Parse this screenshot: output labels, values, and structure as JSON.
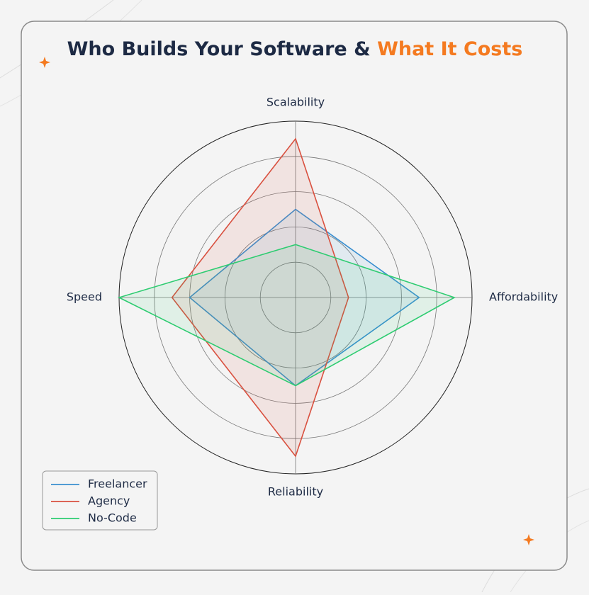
{
  "chart_data": {
    "type": "radar",
    "title": "Who Builds Your Software &",
    "title_highlight": "What It Costs",
    "title_highlight_color": "#f47a20",
    "categories": [
      "Scalability",
      "Affordability",
      "Reliability",
      "Speed"
    ],
    "series": [
      {
        "name": "Freelancer",
        "color": "#3a8fd0",
        "values": [
          5,
          7,
          5,
          6
        ]
      },
      {
        "name": "Agency",
        "color": "#d9503f",
        "values": [
          9,
          3,
          9,
          7
        ]
      },
      {
        "name": "No-Code",
        "color": "#2ecc71",
        "values": [
          3,
          9,
          5,
          10
        ]
      }
    ],
    "rlim": [
      0,
      10
    ],
    "rticks": [
      2,
      4,
      6,
      8
    ],
    "grid": true,
    "legend": "lower left"
  }
}
